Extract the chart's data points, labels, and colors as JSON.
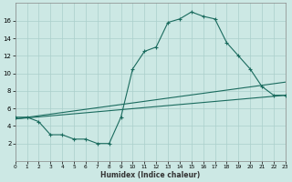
{
  "xlabel": "Humidex (Indice chaleur)",
  "bg_color": "#cce8e4",
  "grid_color": "#aacfcb",
  "line_color": "#1a6b5e",
  "x_min": 0,
  "x_max": 23,
  "y_min": 0,
  "y_max": 18,
  "yticks": [
    2,
    4,
    6,
    8,
    10,
    12,
    14,
    16
  ],
  "xticks": [
    0,
    1,
    2,
    3,
    4,
    5,
    6,
    7,
    8,
    9,
    10,
    11,
    12,
    13,
    14,
    15,
    16,
    17,
    18,
    19,
    20,
    21,
    22,
    23
  ],
  "line1_x": [
    0,
    1,
    2,
    3,
    4,
    5,
    6,
    7,
    8,
    9,
    10,
    11,
    12,
    13,
    14,
    15,
    16,
    17,
    18,
    19,
    20,
    21,
    22,
    23
  ],
  "line1_y": [
    5,
    5,
    4.5,
    3,
    3,
    2.5,
    2.5,
    2,
    2,
    5,
    10.5,
    12.5,
    13,
    15.8,
    16.2,
    17,
    16.5,
    16.2,
    13.5,
    12,
    10.5,
    8.5,
    7.5,
    7.5
  ],
  "line2_x": [
    0,
    23
  ],
  "line2_y": [
    4.8,
    7.5
  ],
  "line3_x": [
    0,
    23
  ],
  "line3_y": [
    4.8,
    9.0
  ]
}
